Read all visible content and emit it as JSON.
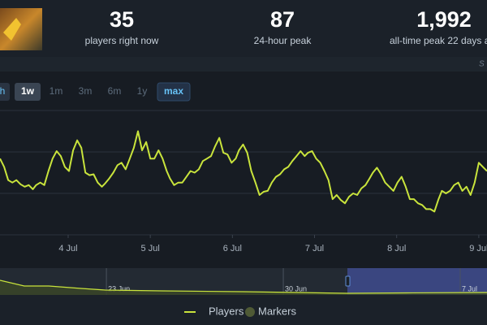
{
  "stats": [
    {
      "value": "35",
      "label": "players right now"
    },
    {
      "value": "87",
      "label": "24-hour peak"
    },
    {
      "value": "1,992",
      "label": "all-time peak 22 days a"
    }
  ],
  "corner_text": "S",
  "range_buttons": [
    "h",
    "1w",
    "1m",
    "3m",
    "6m",
    "1y",
    "max"
  ],
  "chart_data": [
    {
      "type": "line",
      "x": [
        3.17,
        3.22,
        3.27,
        3.32,
        3.37,
        3.42,
        3.47,
        3.52,
        3.57,
        3.61,
        3.66,
        3.71,
        3.76,
        3.81,
        3.86,
        3.91,
        3.96,
        4.01,
        4.06,
        4.11,
        4.16,
        4.21,
        4.26,
        4.31,
        4.36,
        4.41,
        4.45,
        4.5,
        4.55,
        4.6,
        4.65,
        4.7,
        4.75,
        4.8,
        4.85,
        4.9,
        4.95,
        5.0,
        5.05,
        5.1,
        5.15,
        5.2,
        5.24,
        5.29,
        5.34,
        5.39,
        5.44,
        5.49,
        5.54,
        5.59,
        5.64,
        5.69,
        5.74,
        5.79,
        5.84,
        5.89,
        5.94,
        5.99,
        6.04,
        6.08,
        6.13,
        6.18,
        6.23,
        6.28,
        6.33,
        6.38,
        6.43,
        6.48,
        6.53,
        6.58,
        6.63,
        6.68,
        6.73,
        6.78,
        6.83,
        6.88,
        6.92,
        6.97,
        7.02,
        7.07,
        7.12,
        7.17,
        7.22,
        7.27,
        7.32,
        7.37,
        7.42,
        7.47,
        7.52,
        7.57,
        7.62,
        7.67,
        7.71,
        7.76,
        7.81,
        7.86,
        7.91,
        7.96,
        8.01,
        8.06,
        8.11,
        8.16,
        8.21,
        8.26,
        8.31,
        8.36,
        8.41,
        8.46,
        8.51,
        8.55,
        8.6,
        8.65,
        8.7,
        8.75,
        8.8,
        8.85,
        8.9,
        8.95,
        9.0,
        9.05,
        9.1
      ],
      "series": [
        {
          "name": "Players",
          "color": "#c9e43c",
          "values": [
            92,
            82,
            66,
            63,
            66,
            61,
            58,
            60,
            55,
            60,
            63,
            60,
            77,
            92,
            101,
            95,
            82,
            77,
            102,
            114,
            105,
            75,
            72,
            73,
            63,
            58,
            62,
            68,
            75,
            84,
            87,
            79,
            92,
            105,
            125,
            102,
            112,
            92,
            92,
            102,
            92,
            77,
            68,
            60,
            63,
            63,
            70,
            77,
            75,
            79,
            89,
            92,
            95,
            107,
            117,
            99,
            97,
            87,
            92,
            102,
            109,
            99,
            77,
            63,
            48,
            52,
            53,
            63,
            70,
            73,
            79,
            82,
            89,
            95,
            101,
            95,
            99,
            101,
            92,
            87,
            77,
            66,
            43,
            48,
            42,
            38,
            46,
            50,
            48,
            56,
            60,
            68,
            75,
            81,
            73,
            63,
            58,
            53,
            63,
            70,
            58,
            43,
            43,
            38,
            36,
            31,
            31,
            28,
            43,
            53,
            50,
            53,
            60,
            63,
            53,
            58,
            48,
            63,
            87,
            82,
            77
          ]
        }
      ],
      "markers": {
        "name": "Markers",
        "color": "#4f5a35"
      },
      "xlim": [
        3.17,
        9.1
      ],
      "xticks": [
        {
          "value": 4,
          "label": "4 Jul"
        },
        {
          "value": 5,
          "label": "5 Jul"
        },
        {
          "value": 6,
          "label": "6 Jul"
        },
        {
          "value": 7,
          "label": "7 Jul"
        },
        {
          "value": 8,
          "label": "8 Jul"
        },
        {
          "value": 9,
          "label": "9 Jul"
        }
      ],
      "ylim": [
        0,
        200
      ],
      "yticks": [
        0,
        50,
        100,
        150
      ],
      "grid": true
    },
    {
      "type": "area",
      "x": [
        169.79,
        170.75,
        171.72,
        173.0,
        173.96,
        176.21,
        179.42,
        183.53,
        185.85,
        189.06
      ],
      "values": [
        218,
        133,
        133,
        97,
        73,
        61,
        48,
        24,
        30,
        36
      ],
      "color": "#c9e43c",
      "fill": "#3a4528",
      "xlim": [
        169.79,
        189.06
      ],
      "ylim": [
        0,
        400
      ],
      "xticks": [
        {
          "value": 174,
          "label": "23 Jun"
        },
        {
          "value": 181,
          "label": "30 Jun"
        },
        {
          "value": 188,
          "label": "7 Jul"
        }
      ]
    }
  ]
}
